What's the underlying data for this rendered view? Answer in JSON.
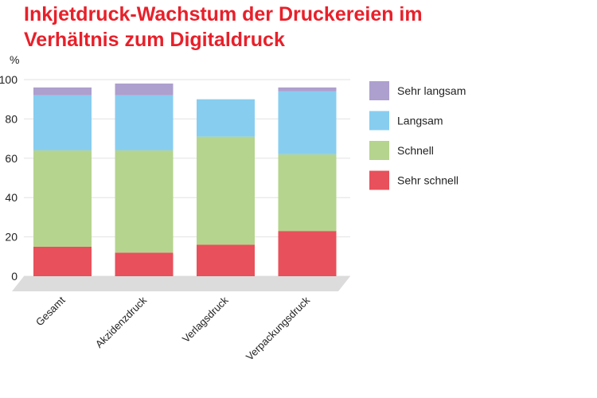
{
  "chart_data": {
    "type": "bar",
    "stacked": true,
    "title": "Inkjetdruck-Wachstum der Druckereien im Verhältnis zum Digitaldruck",
    "ylabel": "%",
    "xlabel": "",
    "ylim": [
      0,
      100
    ],
    "yticks": [
      0,
      20,
      40,
      60,
      80,
      100
    ],
    "grid": true,
    "legend_position": "right",
    "categories": [
      "Gesamt",
      "Akzidenzdruck",
      "Verlagsdruck",
      "Verpackungsdruck"
    ],
    "series": [
      {
        "name": "Sehr schnell",
        "color": "#e8505b",
        "values": [
          15,
          12,
          16,
          23
        ]
      },
      {
        "name": "Schnell",
        "color": "#b5d48e",
        "values": [
          49,
          52,
          55,
          39
        ]
      },
      {
        "name": "Langsam",
        "color": "#87cdf0",
        "values": [
          28,
          28,
          19,
          32
        ]
      },
      {
        "name": "Sehr langsam",
        "color": "#ad9fce",
        "values": [
          4,
          6,
          0,
          2
        ]
      }
    ],
    "legend_order": [
      "Sehr langsam",
      "Langsam",
      "Schnell",
      "Sehr schnell"
    ]
  }
}
